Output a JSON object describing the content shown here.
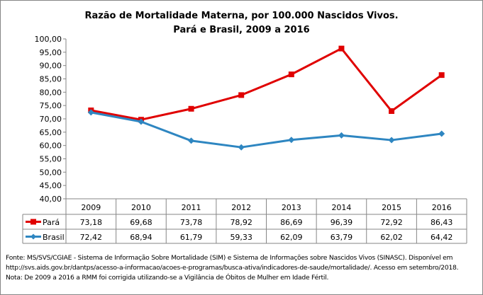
{
  "chart_data": {
    "type": "line",
    "title": "Razão de Mortalidade Materna, por 100.000 Nascidos Vivos.",
    "subtitle": "Pará e Brasil, 2009 a 2016",
    "categories": [
      "2009",
      "2010",
      "2011",
      "2012",
      "2013",
      "2014",
      "2015",
      "2016"
    ],
    "ylim": [
      40,
      100
    ],
    "yticks": [
      "40,00",
      "45,00",
      "50,00",
      "55,00",
      "60,00",
      "65,00",
      "70,00",
      "75,00",
      "80,00",
      "85,00",
      "90,00",
      "95,00",
      "100,00"
    ],
    "grid": false,
    "legend": "data-table",
    "series": [
      {
        "name": "Pará",
        "color": "#E00000",
        "marker": "square",
        "values": [
          73.18,
          69.68,
          73.78,
          78.92,
          86.69,
          96.39,
          72.92,
          86.43
        ],
        "labels": [
          "73,18",
          "69,68",
          "73,78",
          "78,92",
          "86,69",
          "96,39",
          "72,92",
          "86,43"
        ]
      },
      {
        "name": "Brasil",
        "color": "#2E86C1",
        "marker": "diamond",
        "values": [
          72.42,
          68.94,
          61.79,
          59.33,
          62.09,
          63.79,
          62.02,
          64.42
        ],
        "labels": [
          "72,42",
          "68,94",
          "61,79",
          "59,33",
          "62,09",
          "63,79",
          "62,02",
          "64,42"
        ]
      }
    ]
  },
  "notes": [
    "Fonte: MS/SVS/CGIAE - Sistema de Informação Sobre Mortalidade (SIM) e Sistema de Informações sobre Nascidos Vivos (SINASC). Disponível em",
    "http://svs.aids.gov.br/dantps/acesso-a-informacao/acoes-e-programas/busca-ativa/indicadores-de-saude/mortalidade/. Acesso em setembro/2018.",
    "Nota: De 2009 a 2016 a RMM foi corrigida utilizando-se a Vigilância de Óbitos de Mulher em Idade Fértil."
  ]
}
